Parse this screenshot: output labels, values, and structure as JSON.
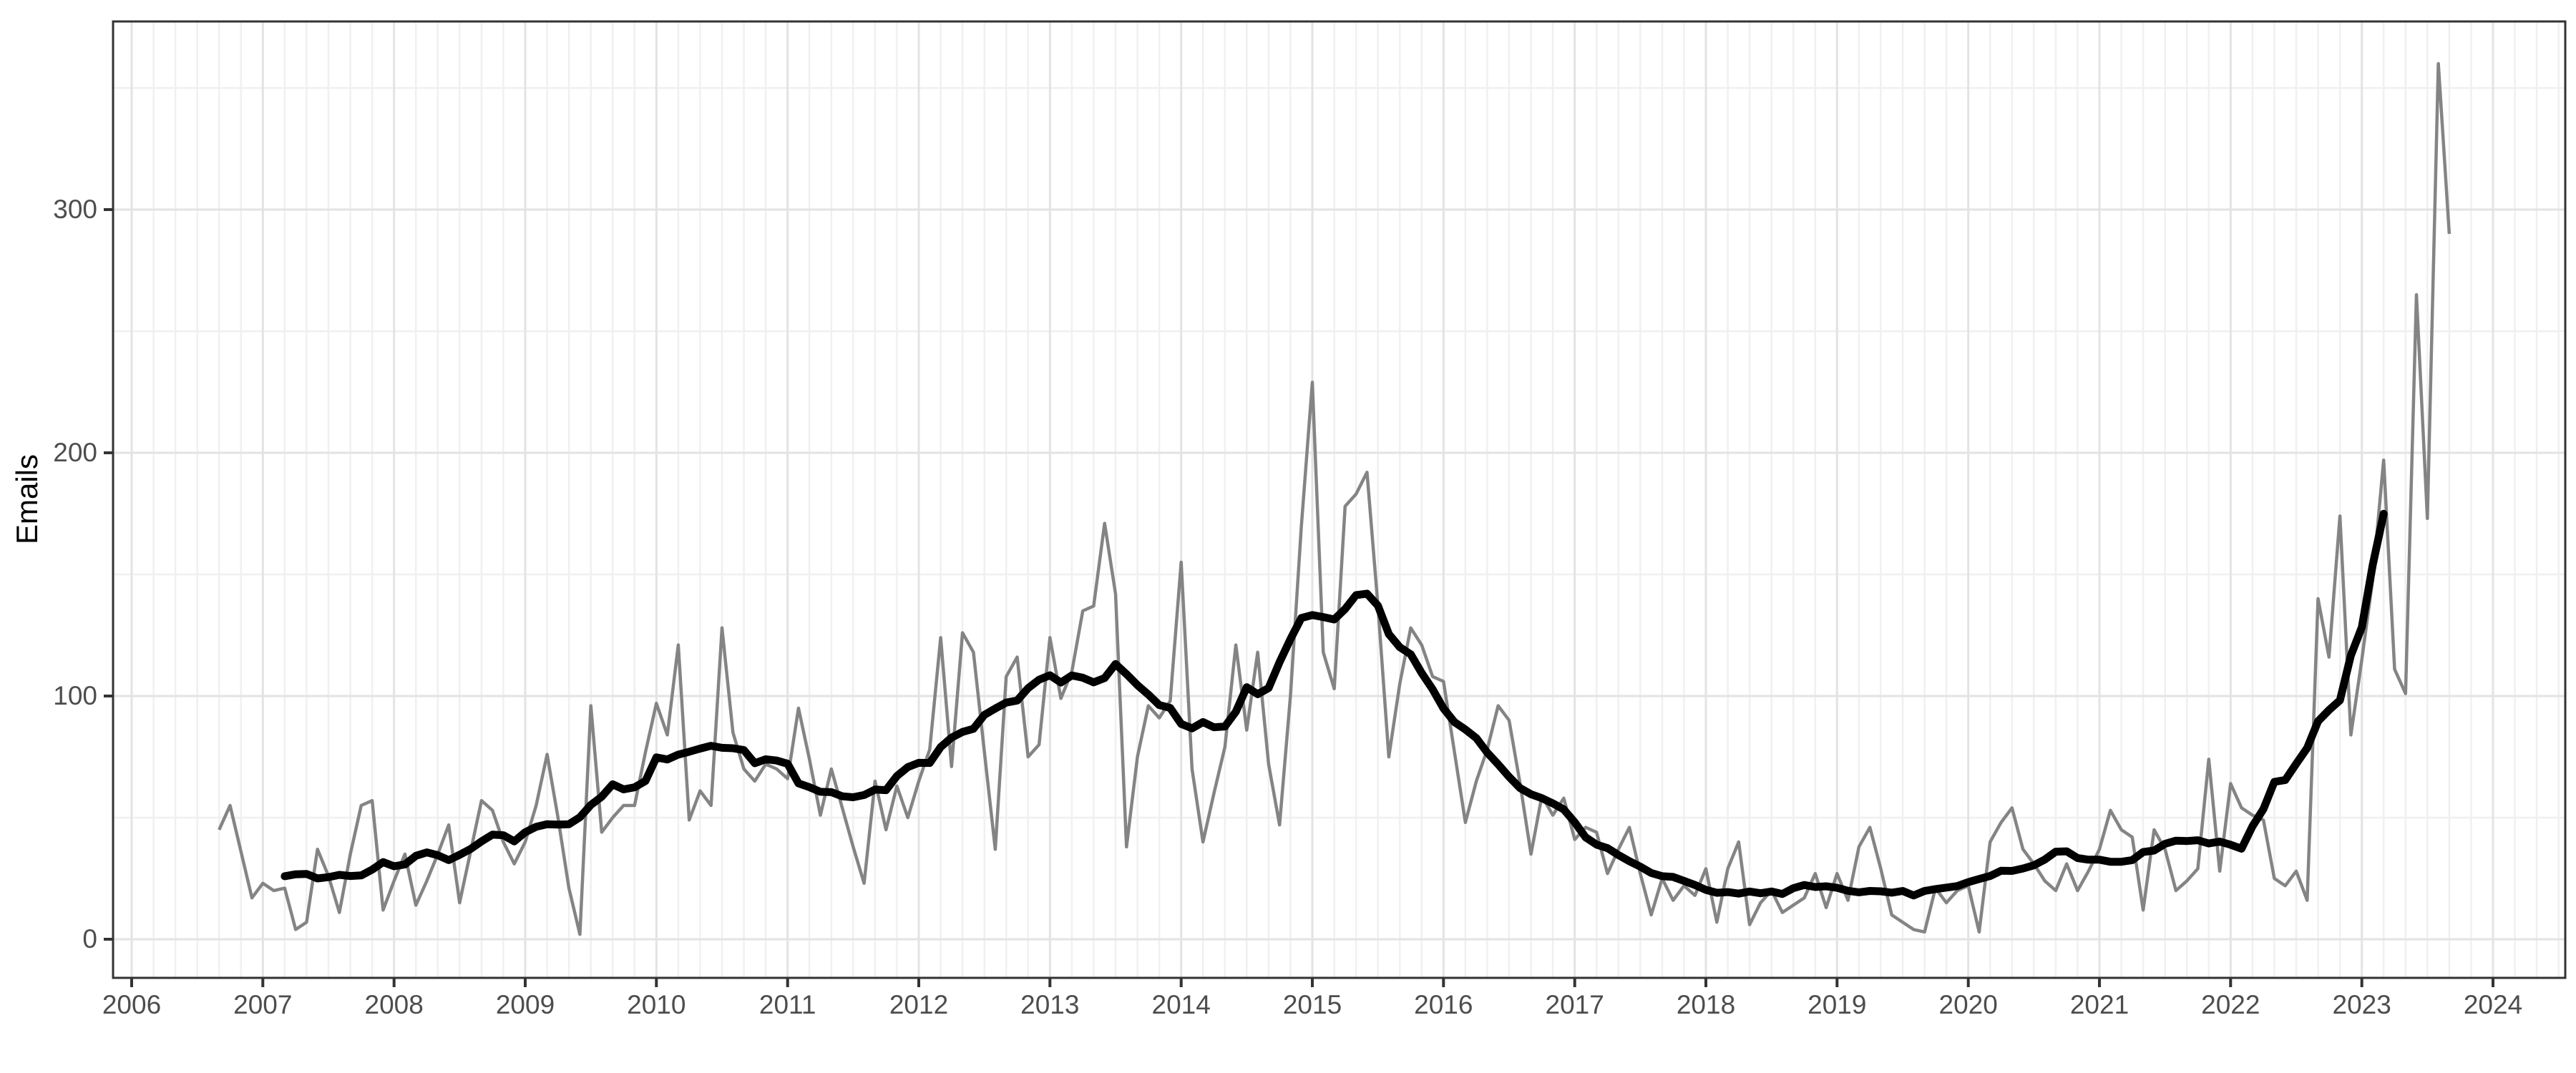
{
  "page": {
    "background_color": "#ffffff"
  },
  "chart_data": {
    "type": "line",
    "title": "",
    "xlabel": "",
    "ylabel": "Emails",
    "frequency": "monthly",
    "x_start": "2006-09",
    "x_end": "2023-09",
    "x_tick_labels": [
      "2006",
      "2007",
      "2008",
      "2009",
      "2010",
      "2011",
      "2012",
      "2013",
      "2014",
      "2015",
      "2016",
      "2017",
      "2018",
      "2019",
      "2020",
      "2021",
      "2022",
      "2023",
      "2024"
    ],
    "y_tick_labels": [
      "0",
      "100",
      "200",
      "300"
    ],
    "y_tick_values": [
      0,
      100,
      200,
      300
    ],
    "y_minor_gridline_values": [
      50,
      150,
      250,
      350
    ],
    "x_minor_gridline_interval_months": 2,
    "ylim": [
      -16,
      378
    ],
    "grid": {
      "major_color": "#e3e3e3",
      "minor_color": "#f0f0f0",
      "show": true
    },
    "axis_style": {
      "panel_border_color": "#333333",
      "tick_mark_color": "#333333",
      "tick_label_color": "#4d4d4d",
      "axis_title_color": "#000000",
      "legend": "none"
    },
    "series": [
      {
        "name": "monthly_emails",
        "kind": "raw_monthly_values",
        "color": "#848484",
        "stroke_width": 4.5,
        "values": [
          45,
          55,
          36,
          17,
          23,
          20,
          21,
          4,
          7,
          37,
          26,
          11,
          35,
          55,
          57,
          12,
          24,
          35,
          14,
          24,
          35,
          47,
          15,
          36,
          57,
          53,
          40,
          31,
          40,
          55,
          76,
          50,
          21,
          2,
          96,
          44,
          50,
          55,
          55,
          77,
          97,
          84,
          121,
          49,
          61,
          55,
          128,
          85,
          70,
          65,
          72,
          70,
          66,
          95,
          74,
          51,
          70,
          54,
          38,
          23,
          65,
          45,
          63,
          50,
          65,
          78,
          124,
          71,
          126,
          118,
          77,
          37,
          108,
          116,
          75,
          80,
          124,
          99,
          110,
          135,
          137,
          171,
          142,
          38,
          75,
          96,
          91,
          98,
          155,
          70,
          40,
          60,
          79,
          121,
          86,
          118,
          72,
          47,
          100,
          170,
          229,
          118,
          103,
          178,
          183,
          192,
          137,
          75,
          105,
          128,
          121,
          108,
          106,
          77,
          48,
          65,
          78,
          96,
          90,
          64,
          35,
          59,
          51,
          58,
          41,
          46,
          44,
          27,
          37,
          46,
          27,
          10,
          25,
          16,
          22,
          18,
          29,
          7,
          29,
          40,
          6,
          15,
          20,
          11,
          14,
          17,
          27,
          13,
          27,
          16,
          38,
          46,
          29,
          10,
          7,
          4,
          3,
          21,
          15,
          20,
          22,
          3,
          40,
          48,
          54,
          37,
          31,
          24,
          20,
          31,
          20,
          28,
          37,
          53,
          45,
          42,
          12,
          45,
          37,
          20,
          24,
          29,
          74,
          28,
          64,
          54,
          51,
          49,
          25,
          22,
          28,
          16,
          140,
          116,
          174,
          84,
          115,
          148,
          197,
          111,
          101,
          265,
          173,
          360,
          290
        ]
      },
      {
        "name": "rolling_mean",
        "kind": "centered_rolling_mean_of_monthly_emails",
        "window_months": 13,
        "color": "#000000",
        "stroke_width": 11
      }
    ]
  }
}
